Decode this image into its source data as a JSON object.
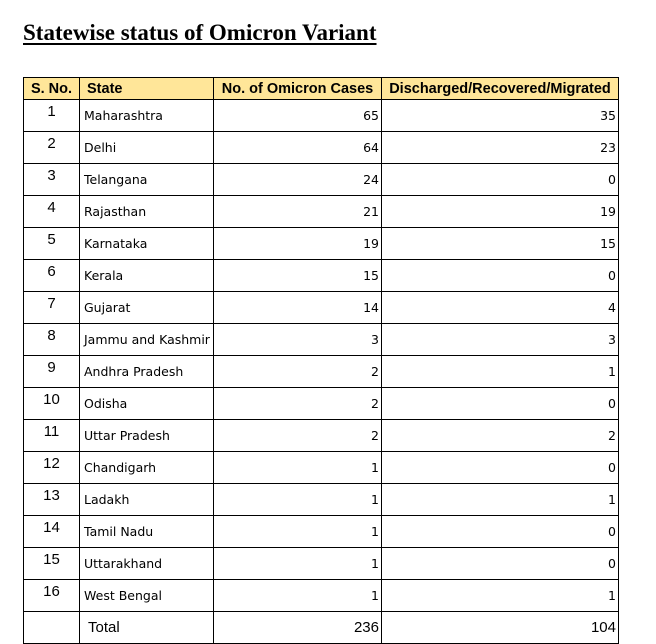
{
  "title": "Statewise status of Omicron Variant",
  "headers": {
    "sno": "S. No.",
    "state": "State",
    "cases": "No. of Omicron Cases",
    "discharged": "Discharged/Recovered/Migrated"
  },
  "header_color": "#FFE699",
  "rows": [
    {
      "sno": "1",
      "state": "Maharashtra",
      "cases": "65",
      "discharged": "35"
    },
    {
      "sno": "2",
      "state": "Delhi",
      "cases": "64",
      "discharged": "23"
    },
    {
      "sno": "3",
      "state": "Telangana",
      "cases": "24",
      "discharged": "0"
    },
    {
      "sno": "4",
      "state": "Rajasthan",
      "cases": "21",
      "discharged": "19"
    },
    {
      "sno": "5",
      "state": "Karnataka",
      "cases": "19",
      "discharged": "15"
    },
    {
      "sno": "6",
      "state": "Kerala",
      "cases": "15",
      "discharged": "0"
    },
    {
      "sno": "7",
      "state": "Gujarat",
      "cases": "14",
      "discharged": "4"
    },
    {
      "sno": "8",
      "state": "Jammu and Kashmir",
      "cases": "3",
      "discharged": "3"
    },
    {
      "sno": "9",
      "state": "Andhra Pradesh",
      "cases": "2",
      "discharged": "1"
    },
    {
      "sno": "10",
      "state": "Odisha",
      "cases": "2",
      "discharged": "0"
    },
    {
      "sno": "11",
      "state": "Uttar Pradesh",
      "cases": "2",
      "discharged": "2"
    },
    {
      "sno": "12",
      "state": "Chandigarh",
      "cases": "1",
      "discharged": "0"
    },
    {
      "sno": "13",
      "state": "Ladakh",
      "cases": "1",
      "discharged": "1"
    },
    {
      "sno": "14",
      "state": "Tamil Nadu",
      "cases": "1",
      "discharged": "0"
    },
    {
      "sno": "15",
      "state": "Uttarakhand",
      "cases": "1",
      "discharged": "0"
    },
    {
      "sno": "16",
      "state": "West Bengal",
      "cases": "1",
      "discharged": "1"
    }
  ],
  "total": {
    "label": "Total",
    "cases": "236",
    "discharged": "104"
  }
}
